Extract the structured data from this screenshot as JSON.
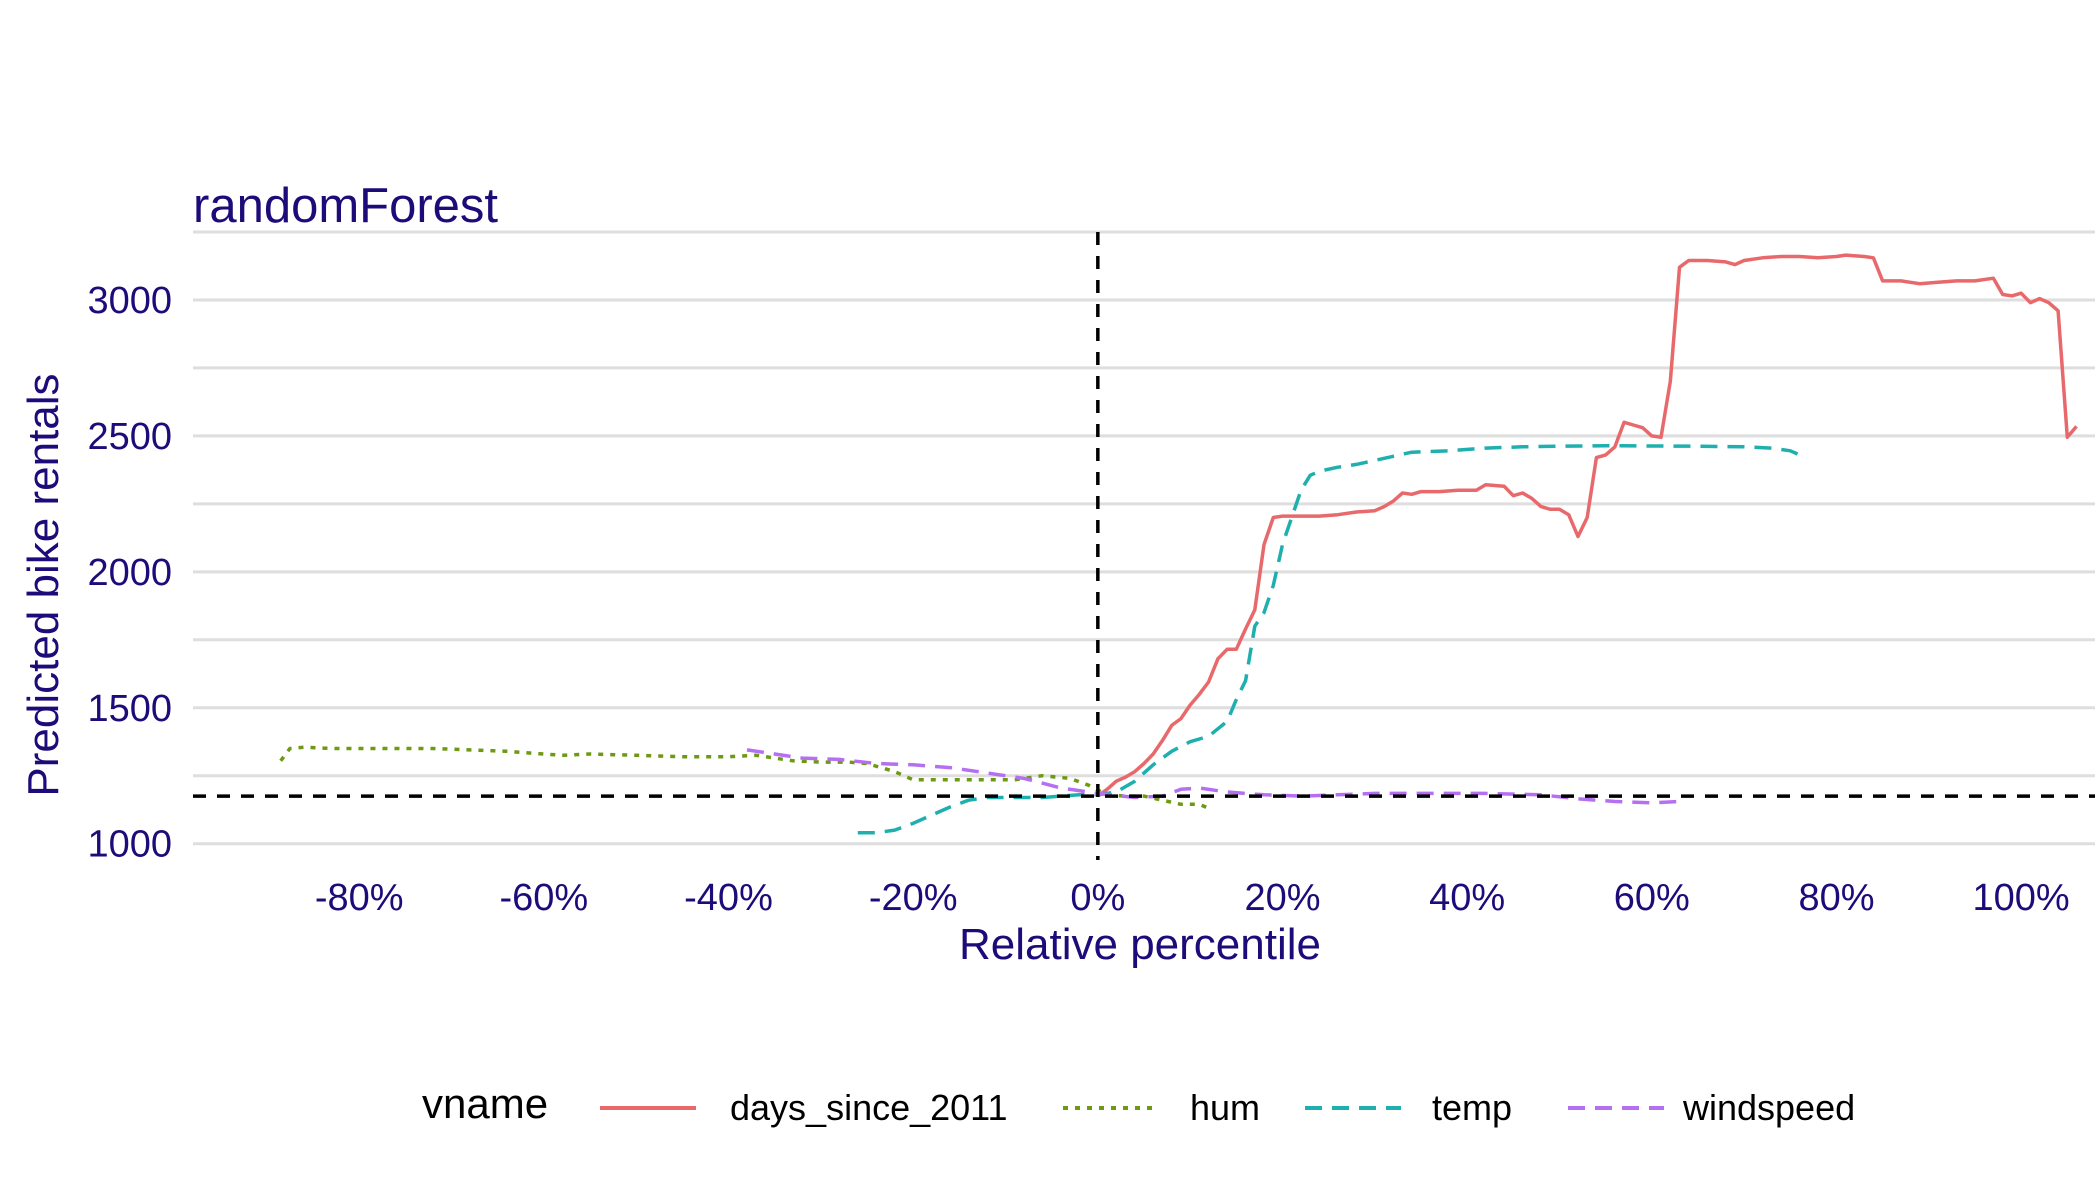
{
  "chart_data": {
    "type": "line",
    "title": "randomForest",
    "xlabel": "Relative percentile",
    "ylabel": "Predicted bike rentals",
    "xlim": [
      -98,
      108
    ],
    "ylim": [
      940,
      3250
    ],
    "x_ticks": [
      -80,
      -60,
      -40,
      -20,
      0,
      20,
      40,
      60,
      80,
      100
    ],
    "x_tick_labels": [
      "-80%",
      "-60%",
      "-40%",
      "-20%",
      "0%",
      "20%",
      "40%",
      "60%",
      "80%",
      "100%"
    ],
    "y_ticks": [
      1000,
      1500,
      2000,
      2500,
      3000
    ],
    "y_tick_labels": [
      "1000",
      "1500",
      "2000",
      "2500",
      "3000"
    ],
    "y_minor_ticks": [
      1250,
      1750,
      2250,
      2750,
      3250
    ],
    "grid": true,
    "reference_lines": {
      "x": 0,
      "y": 1175,
      "style": "dashed",
      "color": "#000000"
    },
    "legend": {
      "title": "vname",
      "position": "bottom"
    },
    "series": [
      {
        "name": "days_since_2011",
        "color": "#E8696B",
        "dash": "solid",
        "points": [
          [
            0,
            1175
          ],
          [
            1,
            1200
          ],
          [
            2,
            1230
          ],
          [
            3,
            1245
          ],
          [
            4,
            1265
          ],
          [
            5,
            1295
          ],
          [
            6,
            1330
          ],
          [
            7,
            1380
          ],
          [
            8,
            1435
          ],
          [
            9,
            1460
          ],
          [
            10,
            1510
          ],
          [
            11,
            1550
          ],
          [
            12,
            1595
          ],
          [
            13,
            1680
          ],
          [
            14,
            1715
          ],
          [
            15,
            1715
          ],
          [
            16,
            1790
          ],
          [
            17,
            1860
          ],
          [
            18,
            2100
          ],
          [
            19,
            2200
          ],
          [
            20,
            2205
          ],
          [
            22,
            2205
          ],
          [
            24,
            2205
          ],
          [
            26,
            2210
          ],
          [
            28,
            2220
          ],
          [
            30,
            2225
          ],
          [
            31,
            2240
          ],
          [
            32,
            2260
          ],
          [
            33,
            2290
          ],
          [
            34,
            2285
          ],
          [
            35,
            2295
          ],
          [
            37,
            2295
          ],
          [
            39,
            2300
          ],
          [
            41,
            2300
          ],
          [
            42,
            2320
          ],
          [
            44,
            2315
          ],
          [
            45,
            2280
          ],
          [
            46,
            2290
          ],
          [
            47,
            2270
          ],
          [
            48,
            2240
          ],
          [
            49,
            2230
          ],
          [
            50,
            2230
          ],
          [
            51,
            2210
          ],
          [
            52,
            2130
          ],
          [
            53,
            2200
          ],
          [
            54,
            2420
          ],
          [
            55,
            2430
          ],
          [
            56,
            2460
          ],
          [
            57,
            2550
          ],
          [
            58,
            2540
          ],
          [
            59,
            2530
          ],
          [
            60,
            2500
          ],
          [
            61,
            2495
          ],
          [
            62,
            2700
          ],
          [
            63,
            3120
          ],
          [
            64,
            3145
          ],
          [
            66,
            3145
          ],
          [
            68,
            3140
          ],
          [
            69,
            3130
          ],
          [
            70,
            3145
          ],
          [
            72,
            3155
          ],
          [
            74,
            3160
          ],
          [
            76,
            3160
          ],
          [
            78,
            3155
          ],
          [
            80,
            3160
          ],
          [
            81,
            3165
          ],
          [
            83,
            3160
          ],
          [
            84,
            3155
          ],
          [
            85,
            3070
          ],
          [
            87,
            3070
          ],
          [
            89,
            3060
          ],
          [
            91,
            3065
          ],
          [
            93,
            3070
          ],
          [
            95,
            3070
          ],
          [
            97,
            3080
          ],
          [
            98,
            3020
          ],
          [
            99,
            3015
          ],
          [
            100,
            3025
          ],
          [
            101,
            2990
          ],
          [
            102,
            3005
          ],
          [
            103,
            2990
          ],
          [
            104,
            2960
          ],
          [
            105,
            2495
          ],
          [
            106,
            2535
          ]
        ]
      },
      {
        "name": "hum",
        "color": "#6D9A12",
        "dash": "dotted",
        "points": [
          [
            -88.5,
            1305
          ],
          [
            -87.5,
            1350
          ],
          [
            -86,
            1355
          ],
          [
            -83,
            1350
          ],
          [
            -78,
            1350
          ],
          [
            -72,
            1350
          ],
          [
            -68,
            1345
          ],
          [
            -64,
            1340
          ],
          [
            -60,
            1330
          ],
          [
            -58,
            1325
          ],
          [
            -55,
            1330
          ],
          [
            -50,
            1325
          ],
          [
            -45,
            1320
          ],
          [
            -40,
            1320
          ],
          [
            -37,
            1325
          ],
          [
            -35,
            1315
          ],
          [
            -33,
            1305
          ],
          [
            -30,
            1300
          ],
          [
            -27,
            1300
          ],
          [
            -25,
            1295
          ],
          [
            -22,
            1265
          ],
          [
            -20,
            1235
          ],
          [
            -17,
            1235
          ],
          [
            -13,
            1235
          ],
          [
            -9,
            1235
          ],
          [
            -6,
            1250
          ],
          [
            -3,
            1240
          ],
          [
            -1,
            1215
          ],
          [
            1,
            1180
          ],
          [
            3,
            1175
          ],
          [
            5,
            1175
          ],
          [
            7,
            1160
          ],
          [
            9,
            1145
          ],
          [
            11,
            1145
          ],
          [
            12,
            1130
          ]
        ]
      },
      {
        "name": "temp",
        "color": "#1FAFAF",
        "dash": "dashed",
        "points": [
          [
            -26,
            1040
          ],
          [
            -24,
            1040
          ],
          [
            -22,
            1050
          ],
          [
            -20,
            1075
          ],
          [
            -18,
            1105
          ],
          [
            -16,
            1135
          ],
          [
            -14,
            1160
          ],
          [
            -12,
            1170
          ],
          [
            -10,
            1170
          ],
          [
            -8,
            1170
          ],
          [
            -6,
            1170
          ],
          [
            -4,
            1175
          ],
          [
            -2,
            1180
          ],
          [
            0,
            1180
          ],
          [
            2,
            1190
          ],
          [
            4,
            1230
          ],
          [
            6,
            1290
          ],
          [
            8,
            1340
          ],
          [
            10,
            1375
          ],
          [
            12,
            1395
          ],
          [
            14,
            1450
          ],
          [
            15,
            1530
          ],
          [
            16,
            1600
          ],
          [
            17,
            1800
          ],
          [
            18,
            1850
          ],
          [
            19,
            1950
          ],
          [
            20,
            2100
          ],
          [
            21,
            2200
          ],
          [
            22,
            2300
          ],
          [
            23,
            2355
          ],
          [
            24,
            2370
          ],
          [
            26,
            2385
          ],
          [
            28,
            2395
          ],
          [
            30,
            2410
          ],
          [
            32,
            2425
          ],
          [
            34,
            2440
          ],
          [
            38,
            2445
          ],
          [
            42,
            2455
          ],
          [
            46,
            2460
          ],
          [
            50,
            2462
          ],
          [
            55,
            2464
          ],
          [
            60,
            2463
          ],
          [
            65,
            2462
          ],
          [
            70,
            2460
          ],
          [
            73,
            2455
          ],
          [
            75,
            2445
          ],
          [
            76,
            2430
          ]
        ]
      },
      {
        "name": "windspeed",
        "color": "#B570F2",
        "dash": "dashed",
        "points": [
          [
            -38,
            1345
          ],
          [
            -35,
            1330
          ],
          [
            -32,
            1315
          ],
          [
            -28,
            1310
          ],
          [
            -24,
            1295
          ],
          [
            -20,
            1290
          ],
          [
            -16,
            1280
          ],
          [
            -12,
            1260
          ],
          [
            -8,
            1240
          ],
          [
            -4,
            1205
          ],
          [
            0,
            1185
          ],
          [
            4,
            1170
          ],
          [
            7,
            1175
          ],
          [
            9,
            1200
          ],
          [
            11,
            1205
          ],
          [
            14,
            1190
          ],
          [
            18,
            1180
          ],
          [
            22,
            1175
          ],
          [
            26,
            1180
          ],
          [
            30,
            1185
          ],
          [
            36,
            1185
          ],
          [
            42,
            1185
          ],
          [
            48,
            1180
          ],
          [
            52,
            1165
          ],
          [
            56,
            1155
          ],
          [
            60,
            1150
          ],
          [
            63,
            1155
          ]
        ]
      }
    ]
  }
}
